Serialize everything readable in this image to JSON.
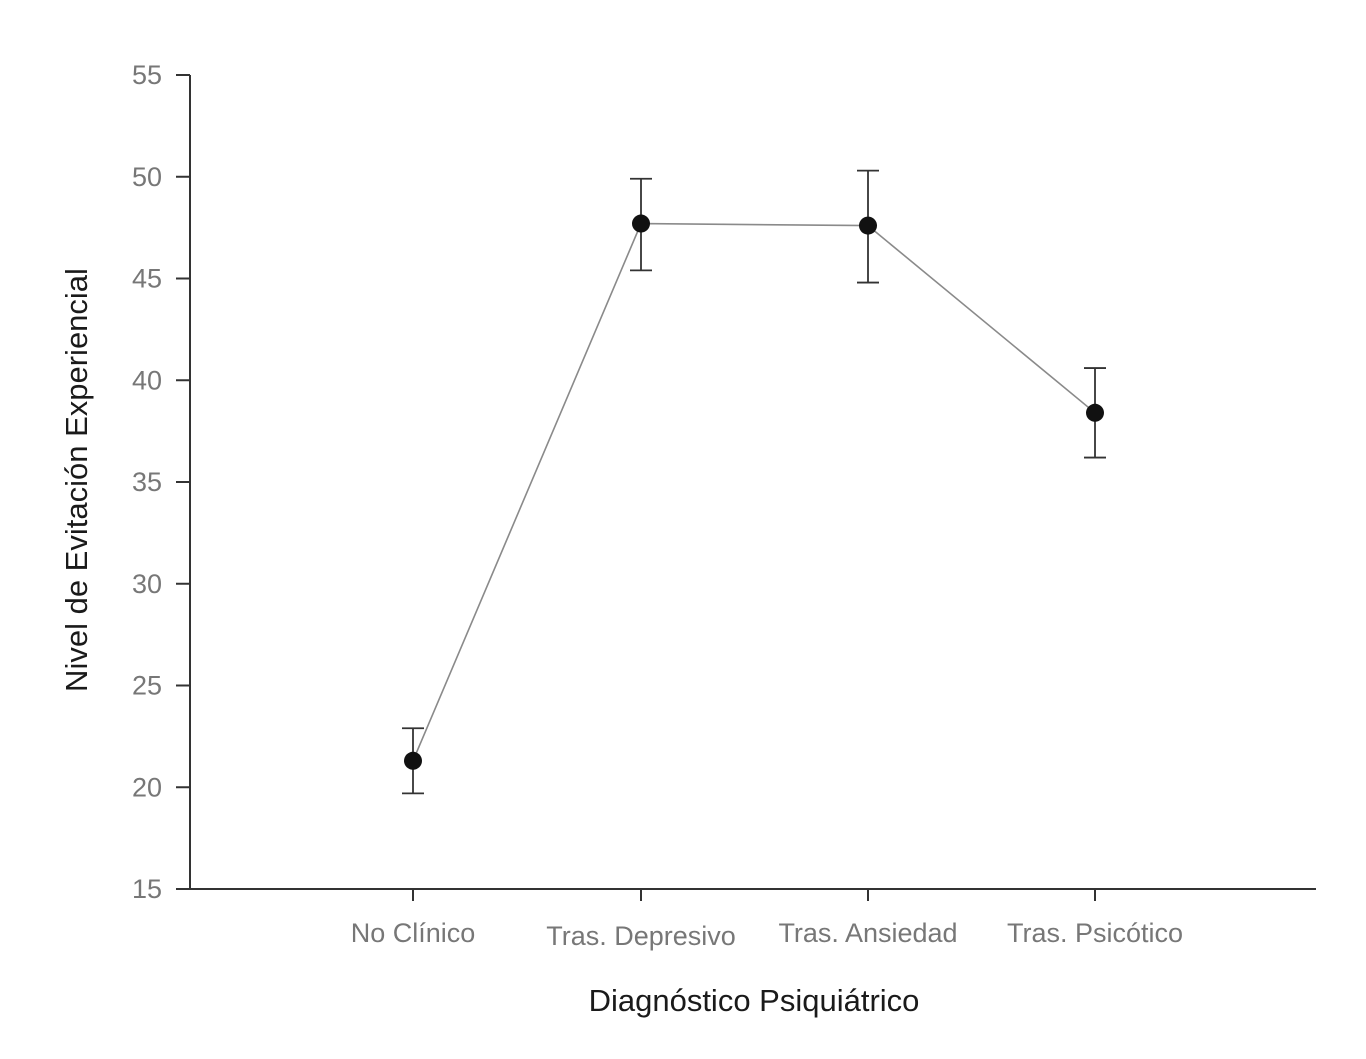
{
  "chart_data": {
    "type": "line",
    "title": "",
    "xlabel": "Diagnóstico Psiquiátrico",
    "ylabel": "Nivel de Evitación Experiencial",
    "categories": [
      "No Clínico",
      "Tras. Depresivo",
      "Tras. Ansiedad",
      "Tras. Psicótico"
    ],
    "series": [
      {
        "values": [
          21.3,
          47.7,
          47.6,
          38.4
        ],
        "error_low": [
          19.7,
          45.4,
          44.8,
          36.2
        ],
        "error_high": [
          22.9,
          49.9,
          50.3,
          40.6
        ]
      }
    ],
    "ylim": [
      15,
      55
    ],
    "yticks": [
      15,
      20,
      25,
      30,
      35,
      40,
      45,
      50,
      55
    ],
    "grid": false,
    "legend": "none",
    "colors": {
      "line": "#8a8a8a",
      "marker": "#111111",
      "axis": "#333333",
      "tick_text": "#777777"
    }
  }
}
